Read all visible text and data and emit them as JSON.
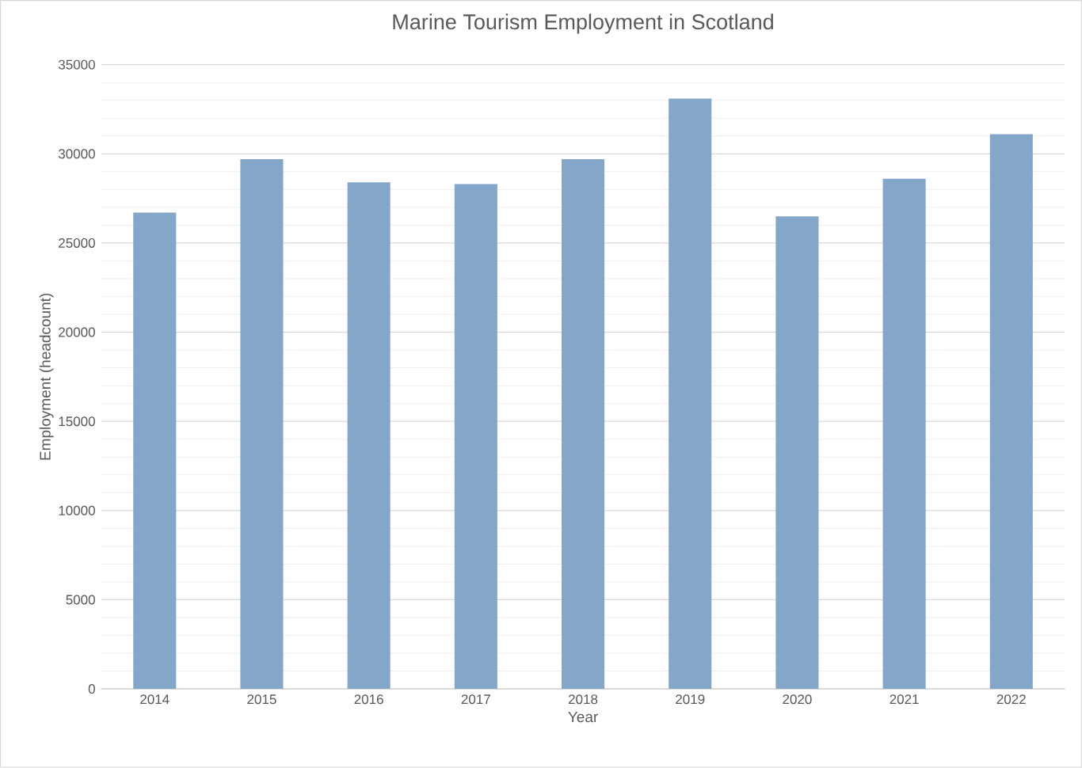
{
  "chart_data": {
    "type": "bar",
    "title": "Marine Tourism Employment in Scotland",
    "xlabel": "Year",
    "ylabel": "Employment (headcount)",
    "categories": [
      "2014",
      "2015",
      "2016",
      "2017",
      "2018",
      "2019",
      "2020",
      "2021",
      "2022"
    ],
    "values": [
      26700,
      29700,
      28400,
      28300,
      29700,
      33100,
      26500,
      28600,
      31100
    ],
    "color": "#84a7c9",
    "ylim": [
      0,
      35000
    ],
    "yticks": [
      0,
      5000,
      10000,
      15000,
      20000,
      25000,
      30000,
      35000
    ],
    "grid": "y"
  }
}
